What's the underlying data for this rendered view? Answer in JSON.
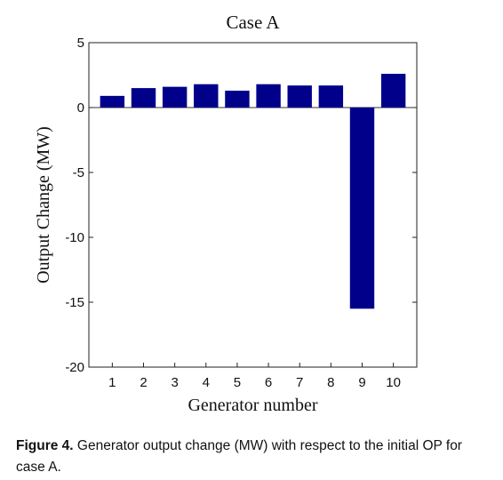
{
  "chart_data": {
    "type": "bar",
    "title": "Case A",
    "xlabel": "Generator number",
    "ylabel": "Output Change (MW)",
    "categories": [
      "1",
      "2",
      "3",
      "4",
      "5",
      "6",
      "7",
      "8",
      "9",
      "10"
    ],
    "values": [
      0.9,
      1.5,
      1.6,
      1.8,
      1.3,
      1.8,
      1.7,
      1.7,
      -15.5,
      2.6
    ],
    "ylim": [
      -20,
      5
    ],
    "yticks": [
      5,
      0,
      -5,
      -10,
      -15,
      -20
    ],
    "bar_color": "#00008b",
    "grid": false
  },
  "caption": {
    "label": "Figure 4.",
    "text": " Generator output change (MW) with respect to the initial OP for case A."
  }
}
